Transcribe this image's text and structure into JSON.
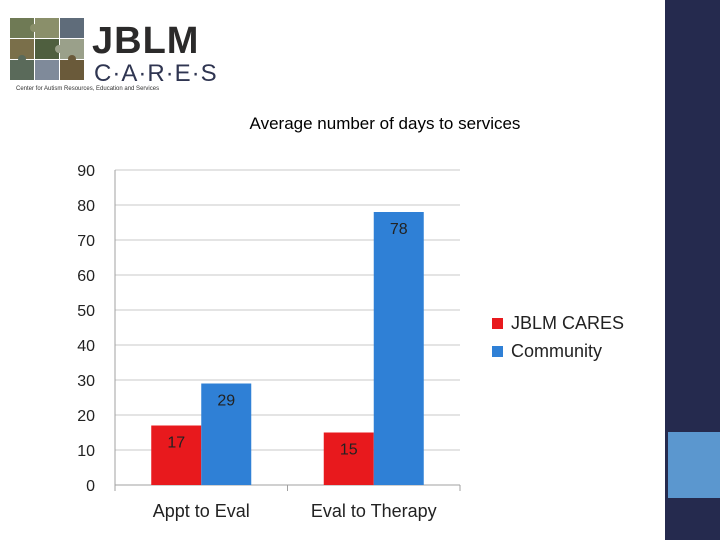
{
  "logo": {
    "wordmark": "JBLM",
    "submark": "C·A·R·E·S",
    "tagline": "Center for Autism Resources, Education and Services"
  },
  "colors": {
    "jblm_cares": "#e8191d",
    "community": "#2f80d6",
    "side_bar": "#252a4e",
    "side_accent": "#5b97cf"
  },
  "chart_data": {
    "type": "bar",
    "title": "Average number of days to services",
    "categories": [
      "Appt to Eval",
      "Eval to Therapy"
    ],
    "series": [
      {
        "name": "JBLM CARES",
        "values": [
          17,
          15
        ],
        "color": "#e8191d"
      },
      {
        "name": "Community",
        "values": [
          29,
          78
        ],
        "color": "#2f80d6"
      }
    ],
    "ylim": [
      0,
      90
    ],
    "yticks": [
      0,
      10,
      20,
      30,
      40,
      50,
      60,
      70,
      80,
      90
    ],
    "grid": true,
    "legend": "right",
    "data_labels": true
  }
}
